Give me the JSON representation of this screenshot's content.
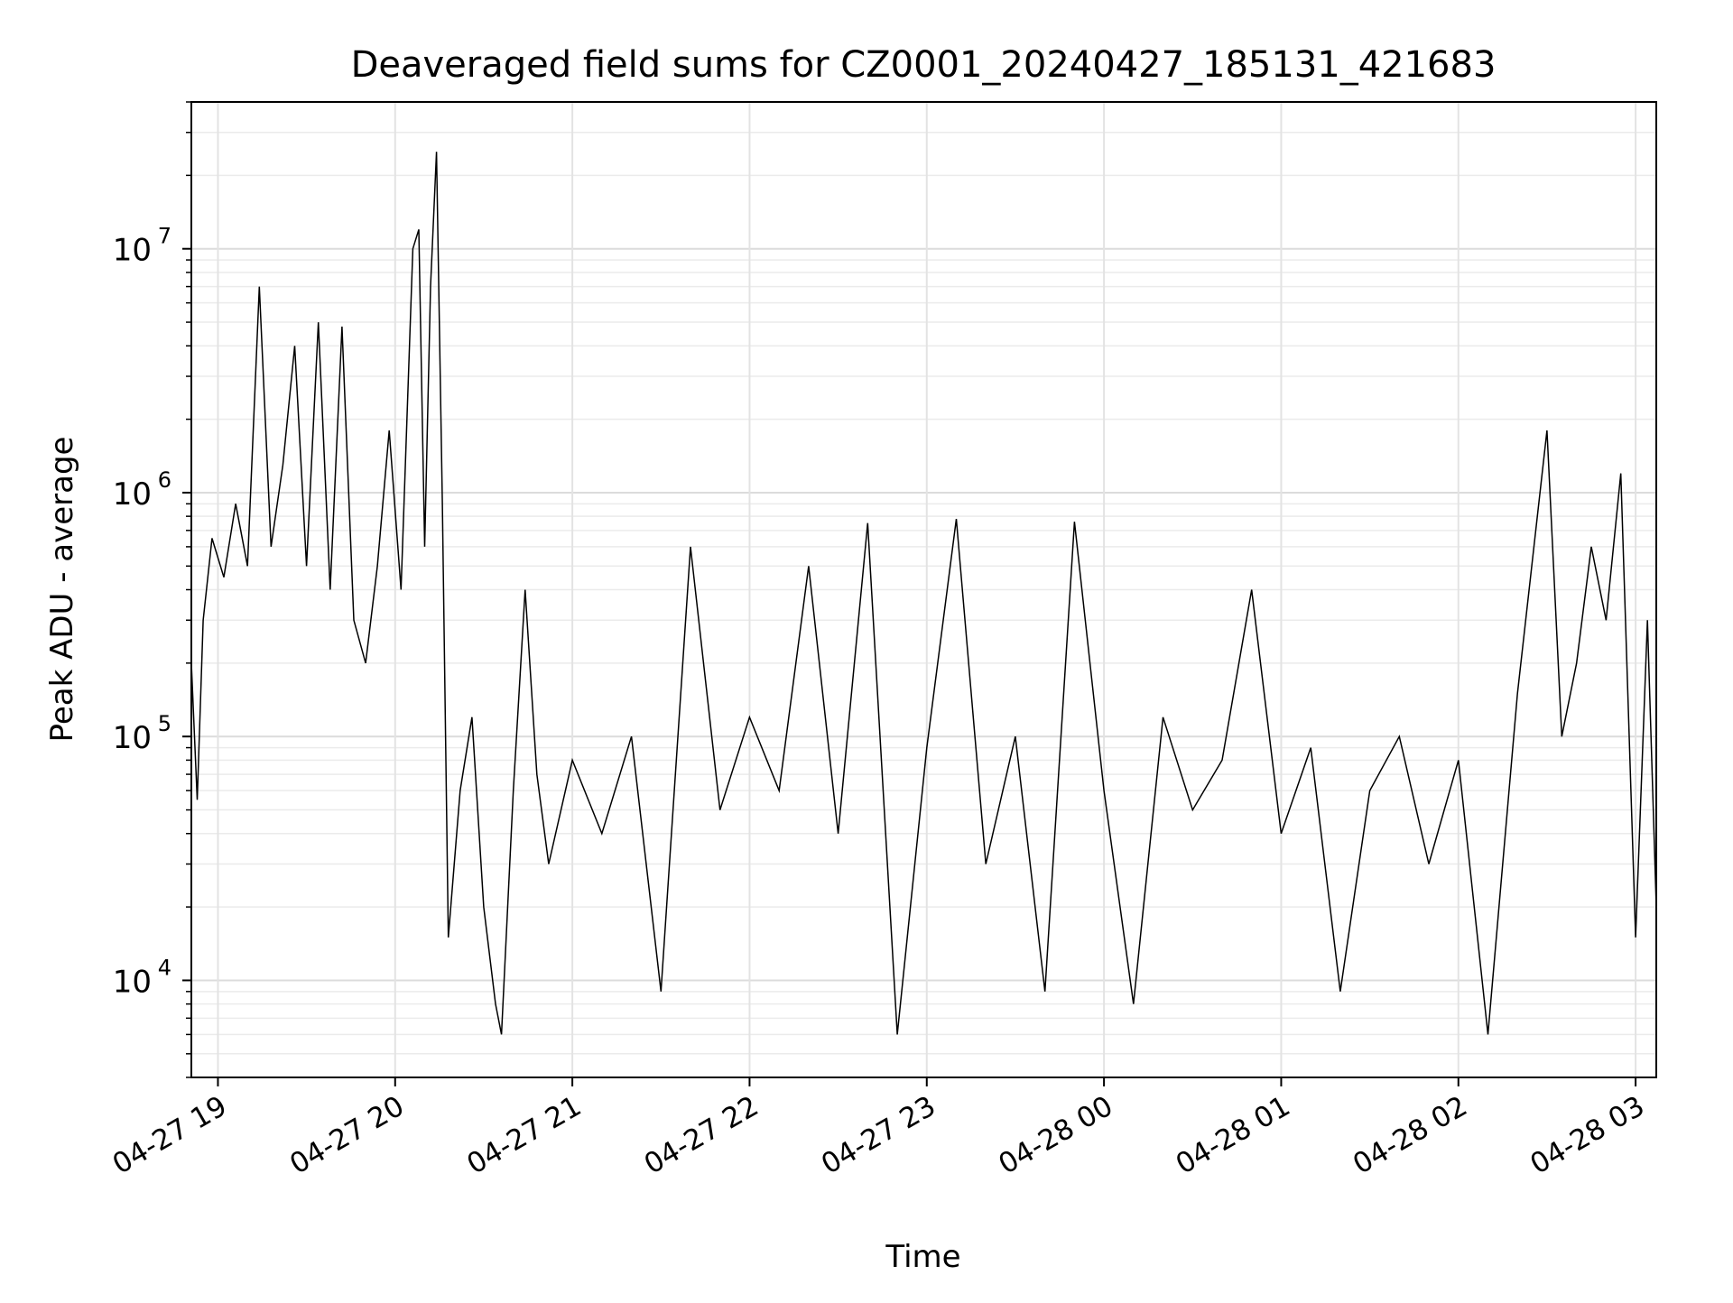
{
  "chart_data": {
    "type": "line",
    "title": "Deaveraged field sums for CZ0001_20240427_185131_421683",
    "xlabel": "Time",
    "ylabel": "Peak ADU - average",
    "yscale": "log",
    "ylim": [
      4000,
      40000000
    ],
    "xlim": [
      "2024-04-27 18:51",
      "2024-04-28 03:07"
    ],
    "grid": "major and minor, light gray",
    "line_color": "#000000",
    "x_ticks": [
      {
        "value": "2024-04-27 19:00",
        "label": "04-27 19"
      },
      {
        "value": "2024-04-27 20:00",
        "label": "04-27 20"
      },
      {
        "value": "2024-04-27 21:00",
        "label": "04-27 21"
      },
      {
        "value": "2024-04-27 22:00",
        "label": "04-27 22"
      },
      {
        "value": "2024-04-27 23:00",
        "label": "04-27 23"
      },
      {
        "value": "2024-04-28 00:00",
        "label": "04-28 00"
      },
      {
        "value": "2024-04-28 01:00",
        "label": "04-28 01"
      },
      {
        "value": "2024-04-28 02:00",
        "label": "04-28 02"
      },
      {
        "value": "2024-04-28 03:00",
        "label": "04-28 03"
      }
    ],
    "y_ticks": [
      {
        "value": 10000,
        "base": "10",
        "exp": "4"
      },
      {
        "value": 100000,
        "base": "10",
        "exp": "5"
      },
      {
        "value": 1000000,
        "base": "10",
        "exp": "6"
      },
      {
        "value": 10000000,
        "base": "10",
        "exp": "7"
      }
    ],
    "series": [
      {
        "values": [
          [
            "2024-04-27 18:51",
            200000
          ],
          [
            "2024-04-27 18:53",
            55000
          ],
          [
            "2024-04-27 18:55",
            300000
          ],
          [
            "2024-04-27 18:58",
            650000
          ],
          [
            "2024-04-27 19:02",
            450000
          ],
          [
            "2024-04-27 19:06",
            900000
          ],
          [
            "2024-04-27 19:10",
            500000
          ],
          [
            "2024-04-27 19:14",
            7000000
          ],
          [
            "2024-04-27 19:18",
            600000
          ],
          [
            "2024-04-27 19:22",
            1300000
          ],
          [
            "2024-04-27 19:26",
            4000000
          ],
          [
            "2024-04-27 19:30",
            500000
          ],
          [
            "2024-04-27 19:34",
            5000000
          ],
          [
            "2024-04-27 19:38",
            400000
          ],
          [
            "2024-04-27 19:42",
            4800000
          ],
          [
            "2024-04-27 19:46",
            300000
          ],
          [
            "2024-04-27 19:50",
            200000
          ],
          [
            "2024-04-27 19:54",
            500000
          ],
          [
            "2024-04-27 19:58",
            1800000
          ],
          [
            "2024-04-27 20:02",
            400000
          ],
          [
            "2024-04-27 20:06",
            10000000
          ],
          [
            "2024-04-27 20:08",
            12000000
          ],
          [
            "2024-04-27 20:10",
            600000
          ],
          [
            "2024-04-27 20:12",
            7000000
          ],
          [
            "2024-04-27 20:14",
            25000000
          ],
          [
            "2024-04-27 20:16",
            900000
          ],
          [
            "2024-04-27 20:18",
            15000
          ],
          [
            "2024-04-27 20:22",
            60000
          ],
          [
            "2024-04-27 20:26",
            120000
          ],
          [
            "2024-04-27 20:30",
            20000
          ],
          [
            "2024-04-27 20:34",
            8000
          ],
          [
            "2024-04-27 20:36",
            6000
          ],
          [
            "2024-04-27 20:40",
            60000
          ],
          [
            "2024-04-27 20:44",
            400000
          ],
          [
            "2024-04-27 20:48",
            70000
          ],
          [
            "2024-04-27 20:52",
            30000
          ],
          [
            "2024-04-27 21:00",
            80000
          ],
          [
            "2024-04-27 21:10",
            40000
          ],
          [
            "2024-04-27 21:20",
            100000
          ],
          [
            "2024-04-27 21:30",
            9000
          ],
          [
            "2024-04-27 21:40",
            600000
          ],
          [
            "2024-04-27 21:50",
            50000
          ],
          [
            "2024-04-27 22:00",
            120000
          ],
          [
            "2024-04-27 22:10",
            60000
          ],
          [
            "2024-04-27 22:20",
            500000
          ],
          [
            "2024-04-27 22:30",
            40000
          ],
          [
            "2024-04-27 22:40",
            750000
          ],
          [
            "2024-04-27 22:50",
            6000
          ],
          [
            "2024-04-27 23:00",
            90000
          ],
          [
            "2024-04-27 23:10",
            780000
          ],
          [
            "2024-04-27 23:20",
            30000
          ],
          [
            "2024-04-27 23:30",
            100000
          ],
          [
            "2024-04-27 23:40",
            9000
          ],
          [
            "2024-04-27 23:50",
            760000
          ],
          [
            "2024-04-28 00:00",
            60000
          ],
          [
            "2024-04-28 00:10",
            8000
          ],
          [
            "2024-04-28 00:20",
            120000
          ],
          [
            "2024-04-28 00:30",
            50000
          ],
          [
            "2024-04-28 00:40",
            80000
          ],
          [
            "2024-04-28 00:50",
            400000
          ],
          [
            "2024-04-28 01:00",
            40000
          ],
          [
            "2024-04-28 01:10",
            90000
          ],
          [
            "2024-04-28 01:20",
            9000
          ],
          [
            "2024-04-28 01:30",
            60000
          ],
          [
            "2024-04-28 01:40",
            100000
          ],
          [
            "2024-04-28 01:50",
            30000
          ],
          [
            "2024-04-28 02:00",
            80000
          ],
          [
            "2024-04-28 02:10",
            6000
          ],
          [
            "2024-04-28 02:20",
            150000
          ],
          [
            "2024-04-28 02:30",
            1800000
          ],
          [
            "2024-04-28 02:35",
            100000
          ],
          [
            "2024-04-28 02:40",
            200000
          ],
          [
            "2024-04-28 02:45",
            600000
          ],
          [
            "2024-04-28 02:50",
            300000
          ],
          [
            "2024-04-28 02:55",
            1200000
          ],
          [
            "2024-04-28 03:00",
            15000
          ],
          [
            "2024-04-28 03:04",
            300000
          ],
          [
            "2024-04-28 03:07",
            20000
          ]
        ]
      }
    ]
  }
}
